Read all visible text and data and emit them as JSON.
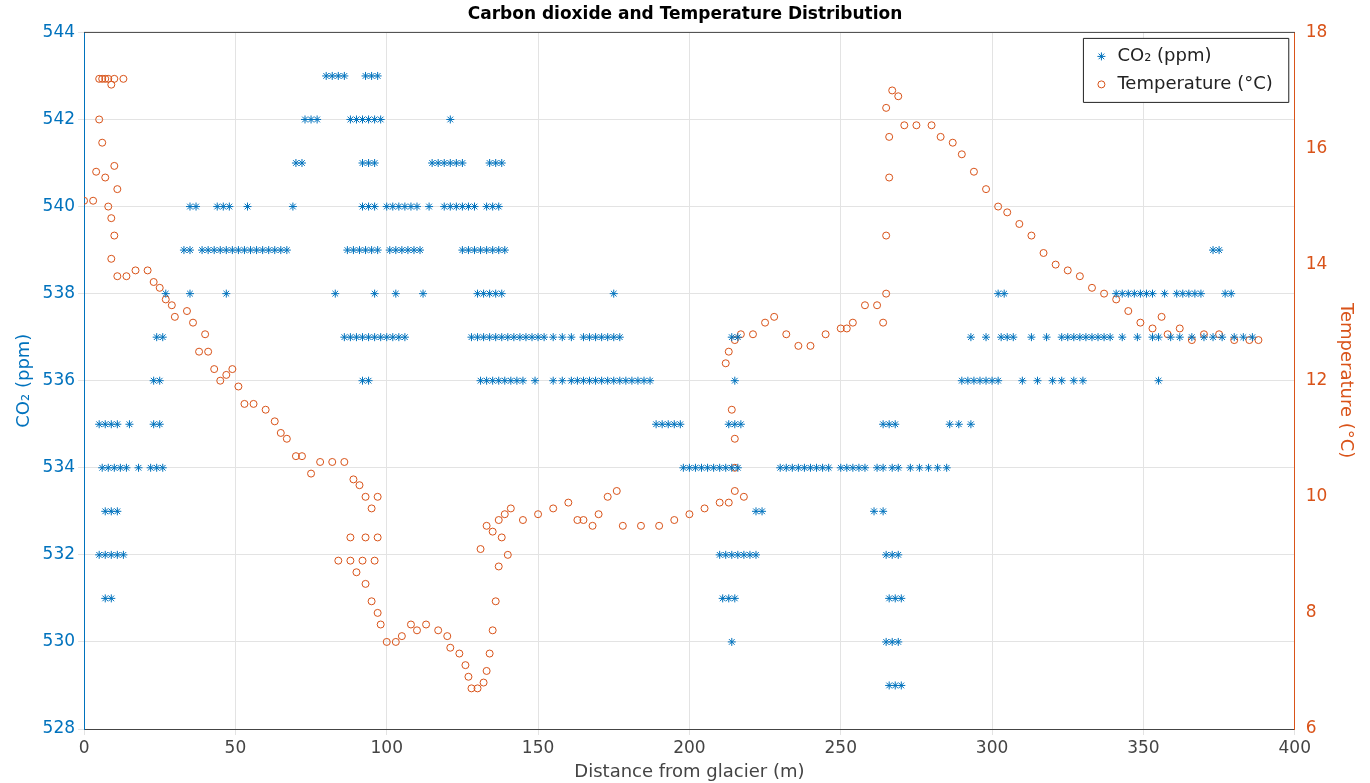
{
  "chart_data": {
    "type": "scatter",
    "title": "Carbon dioxide and Temperature Distribution",
    "xlabel": "Distance from glacier (m)",
    "ylabel": "CO₂ (ppm)",
    "y2label": "Temperature (°C)",
    "xlim": [
      0,
      400
    ],
    "xticks": [
      0,
      50,
      100,
      150,
      200,
      250,
      300,
      350,
      400
    ],
    "ylim": [
      528,
      544
    ],
    "yticks": [
      528,
      530,
      532,
      534,
      536,
      538,
      540,
      542,
      544
    ],
    "y2lim": [
      6,
      18
    ],
    "y2ticks": [
      6,
      8,
      10,
      12,
      14,
      16,
      18
    ],
    "grid": true,
    "legend": "top right",
    "series": [
      {
        "name": "CO₂ (ppm)",
        "color": "#0072bd",
        "marker": "cross",
        "axis": "y",
        "x": [
          80,
          82,
          84,
          86,
          93,
          95,
          97,
          73,
          75,
          77,
          88,
          90,
          92,
          94,
          96,
          98,
          121,
          70,
          72,
          92,
          94,
          96,
          115,
          117,
          119,
          121,
          123,
          125,
          134,
          136,
          138,
          35,
          37,
          44,
          46,
          48,
          54,
          69,
          92,
          94,
          96,
          100,
          102,
          104,
          106,
          108,
          110,
          114,
          119,
          121,
          123,
          125,
          127,
          129,
          133,
          135,
          137,
          33,
          35,
          39,
          41,
          43,
          45,
          47,
          49,
          51,
          53,
          55,
          57,
          59,
          61,
          63,
          65,
          67,
          87,
          89,
          91,
          93,
          95,
          97,
          101,
          103,
          105,
          107,
          109,
          111,
          125,
          127,
          129,
          131,
          133,
          135,
          137,
          139,
          373,
          375,
          27,
          35,
          47,
          83,
          96,
          103,
          112,
          130,
          132,
          134,
          136,
          138,
          175,
          302,
          304,
          341,
          343,
          345,
          347,
          349,
          351,
          353,
          357,
          361,
          363,
          365,
          367,
          369,
          377,
          379,
          24,
          26,
          86,
          88,
          90,
          92,
          94,
          96,
          98,
          100,
          102,
          104,
          106,
          128,
          130,
          132,
          134,
          136,
          138,
          140,
          142,
          144,
          146,
          148,
          150,
          152,
          155,
          158,
          161,
          165,
          167,
          169,
          171,
          173,
          175,
          177,
          214,
          216,
          293,
          298,
          303,
          305,
          307,
          313,
          318,
          323,
          325,
          327,
          329,
          331,
          333,
          335,
          337,
          339,
          343,
          348,
          353,
          355,
          359,
          362,
          366,
          370,
          373,
          376,
          380,
          383,
          386,
          23,
          25,
          92,
          94,
          131,
          133,
          135,
          137,
          139,
          141,
          143,
          145,
          149,
          155,
          158,
          161,
          163,
          165,
          167,
          169,
          171,
          173,
          175,
          177,
          179,
          181,
          183,
          185,
          187,
          215,
          290,
          292,
          294,
          296,
          298,
          300,
          302,
          310,
          315,
          320,
          323,
          327,
          330,
          355,
          5,
          7,
          9,
          11,
          15,
          23,
          25,
          189,
          191,
          193,
          195,
          197,
          213,
          215,
          217,
          264,
          266,
          268,
          286,
          289,
          293,
          6,
          8,
          10,
          12,
          14,
          18,
          22,
          24,
          26,
          198,
          200,
          202,
          204,
          206,
          208,
          210,
          212,
          214,
          216,
          230,
          232,
          234,
          236,
          238,
          240,
          242,
          244,
          246,
          250,
          252,
          254,
          256,
          258,
          262,
          264,
          267,
          269,
          273,
          276,
          279,
          282,
          285,
          7,
          9,
          11,
          222,
          224,
          261,
          264,
          5,
          7,
          9,
          11,
          13,
          210,
          212,
          214,
          216,
          218,
          220,
          222,
          265,
          267,
          269,
          7,
          9,
          211,
          213,
          215,
          266,
          268,
          270,
          214,
          265,
          267,
          269,
          266,
          268,
          270
        ],
        "values": [
          543,
          543,
          543,
          543,
          543,
          543,
          543,
          542,
          542,
          542,
          542,
          542,
          542,
          542,
          542,
          542,
          542,
          541,
          541,
          541,
          541,
          541,
          541,
          541,
          541,
          541,
          541,
          541,
          541,
          541,
          541,
          540,
          540,
          540,
          540,
          540,
          540,
          540,
          540,
          540,
          540,
          540,
          540,
          540,
          540,
          540,
          540,
          540,
          540,
          540,
          540,
          540,
          540,
          540,
          540,
          540,
          540,
          539,
          539,
          539,
          539,
          539,
          539,
          539,
          539,
          539,
          539,
          539,
          539,
          539,
          539,
          539,
          539,
          539,
          539,
          539,
          539,
          539,
          539,
          539,
          539,
          539,
          539,
          539,
          539,
          539,
          539,
          539,
          539,
          539,
          539,
          539,
          539,
          539,
          539,
          539,
          538,
          538,
          538,
          538,
          538,
          538,
          538,
          538,
          538,
          538,
          538,
          538,
          538,
          538,
          538,
          538,
          538,
          538,
          538,
          538,
          538,
          538,
          538,
          538,
          538,
          538,
          538,
          538,
          538,
          538,
          537,
          537,
          537,
          537,
          537,
          537,
          537,
          537,
          537,
          537,
          537,
          537,
          537,
          537,
          537,
          537,
          537,
          537,
          537,
          537,
          537,
          537,
          537,
          537,
          537,
          537,
          537,
          537,
          537,
          537,
          537,
          537,
          537,
          537,
          537,
          537,
          537,
          537,
          537,
          537,
          537,
          537,
          537,
          537,
          537,
          537,
          537,
          537,
          537,
          537,
          537,
          537,
          537,
          537,
          537,
          537,
          537,
          537,
          537,
          537,
          537,
          537,
          537,
          537,
          537,
          537,
          537,
          536,
          536,
          536,
          536,
          536,
          536,
          536,
          536,
          536,
          536,
          536,
          536,
          536,
          536,
          536,
          536,
          536,
          536,
          536,
          536,
          536,
          536,
          536,
          536,
          536,
          536,
          536,
          536,
          536,
          536,
          536,
          536,
          536,
          536,
          536,
          536,
          536,
          536,
          536,
          536,
          536,
          536,
          536,
          536,
          535,
          535,
          535,
          535,
          535,
          535,
          535,
          535,
          535,
          535,
          535,
          535,
          535,
          535,
          535,
          535,
          535,
          535,
          535,
          535,
          535,
          534,
          534,
          534,
          534,
          534,
          534,
          534,
          534,
          534,
          534,
          534,
          534,
          534,
          534,
          534,
          534,
          534,
          534,
          534,
          534,
          534,
          534,
          534,
          534,
          534,
          534,
          534,
          534,
          534,
          534,
          534,
          534,
          534,
          534,
          534,
          534,
          534,
          534,
          534,
          534,
          534,
          534,
          533,
          533,
          533,
          533,
          533,
          533,
          533,
          532,
          532,
          532,
          532,
          532,
          532,
          532,
          532,
          532,
          532,
          532,
          532,
          532,
          532,
          532,
          531,
          531,
          531,
          531,
          531,
          531,
          531,
          531,
          530,
          530,
          530,
          530,
          529,
          529,
          529
        ]
      },
      {
        "name": "Temperature (°C)",
        "color": "#d95319",
        "marker": "circle",
        "axis": "y2",
        "x": [
          0,
          3,
          4,
          5,
          5,
          6,
          7,
          8,
          9,
          10,
          13,
          6,
          7,
          8,
          9,
          10,
          10,
          11,
          9,
          11,
          14,
          17,
          21,
          23,
          25,
          27,
          29,
          30,
          34,
          36,
          40,
          38,
          41,
          43,
          45,
          47,
          49,
          51,
          53,
          56,
          60,
          63,
          65,
          67,
          70,
          72,
          75,
          78,
          82,
          86,
          89,
          91,
          93,
          95,
          97,
          88,
          93,
          97,
          84,
          88,
          92,
          96,
          90,
          93,
          95,
          97,
          98,
          100,
          103,
          105,
          108,
          110,
          113,
          117,
          120,
          121,
          124,
          126,
          127,
          128,
          130,
          132,
          133,
          134,
          135,
          136,
          137,
          135,
          137,
          139,
          141,
          138,
          131,
          133,
          140,
          145,
          150,
          155,
          160,
          163,
          165,
          168,
          170,
          173,
          176,
          178,
          184,
          190,
          195,
          200,
          205,
          210,
          213,
          215,
          218,
          212,
          213,
          215,
          214,
          215,
          215,
          217,
          221,
          225,
          228,
          232,
          236,
          240,
          245,
          250,
          252,
          254,
          258,
          262,
          264,
          265,
          265,
          266,
          266,
          265,
          267,
          269,
          271,
          275,
          280,
          283,
          287,
          290,
          294,
          298,
          302,
          305,
          309,
          313,
          317,
          321,
          325,
          329,
          333,
          337,
          341,
          345,
          349,
          353,
          356,
          358,
          362,
          366,
          370,
          375,
          380,
          385,
          388
        ],
        "values": [
          15.1,
          15.1,
          15.6,
          16.5,
          17.2,
          17.2,
          17.2,
          17.2,
          17.1,
          17.2,
          17.2,
          16.1,
          15.5,
          15.0,
          14.8,
          14.5,
          15.7,
          15.3,
          14.1,
          13.8,
          13.8,
          13.9,
          13.9,
          13.7,
          13.6,
          13.4,
          13.3,
          13.1,
          13.2,
          13.0,
          12.8,
          12.5,
          12.5,
          12.2,
          12.0,
          12.1,
          12.2,
          11.9,
          11.6,
          11.6,
          11.5,
          11.3,
          11.1,
          11.0,
          10.7,
          10.7,
          10.4,
          10.6,
          10.6,
          10.6,
          10.3,
          10.2,
          10.0,
          9.8,
          10.0,
          9.3,
          9.3,
          9.3,
          8.9,
          8.9,
          8.9,
          8.9,
          8.7,
          8.5,
          8.2,
          8.0,
          7.8,
          7.5,
          7.5,
          7.6,
          7.8,
          7.7,
          7.8,
          7.7,
          7.6,
          7.4,
          7.3,
          7.1,
          6.9,
          6.7,
          6.7,
          6.8,
          7.0,
          7.3,
          7.7,
          8.2,
          8.8,
          9.4,
          9.6,
          9.7,
          9.8,
          9.3,
          9.1,
          9.5,
          9.0,
          9.6,
          9.7,
          9.8,
          9.9,
          9.6,
          9.6,
          9.5,
          9.7,
          10.0,
          10.1,
          9.5,
          9.5,
          9.5,
          9.6,
          9.7,
          9.8,
          9.9,
          9.9,
          10.1,
          10.0,
          12.3,
          12.5,
          12.7,
          11.5,
          11.0,
          10.5,
          12.8,
          12.8,
          13.0,
          13.1,
          12.8,
          12.6,
          12.6,
          12.8,
          12.9,
          12.9,
          13.0,
          13.3,
          13.3,
          13.0,
          13.5,
          14.5,
          15.5,
          16.2,
          16.7,
          17.0,
          16.9,
          16.4,
          16.4,
          16.4,
          16.2,
          16.1,
          15.9,
          15.6,
          15.3,
          15.0,
          14.9,
          14.7,
          14.5,
          14.2,
          14.0,
          13.9,
          13.8,
          13.6,
          13.5,
          13.4,
          13.2,
          13.0,
          12.9,
          13.1,
          12.8,
          12.9,
          12.7,
          12.8,
          12.8,
          12.7,
          12.7,
          12.7
        ]
      }
    ]
  }
}
